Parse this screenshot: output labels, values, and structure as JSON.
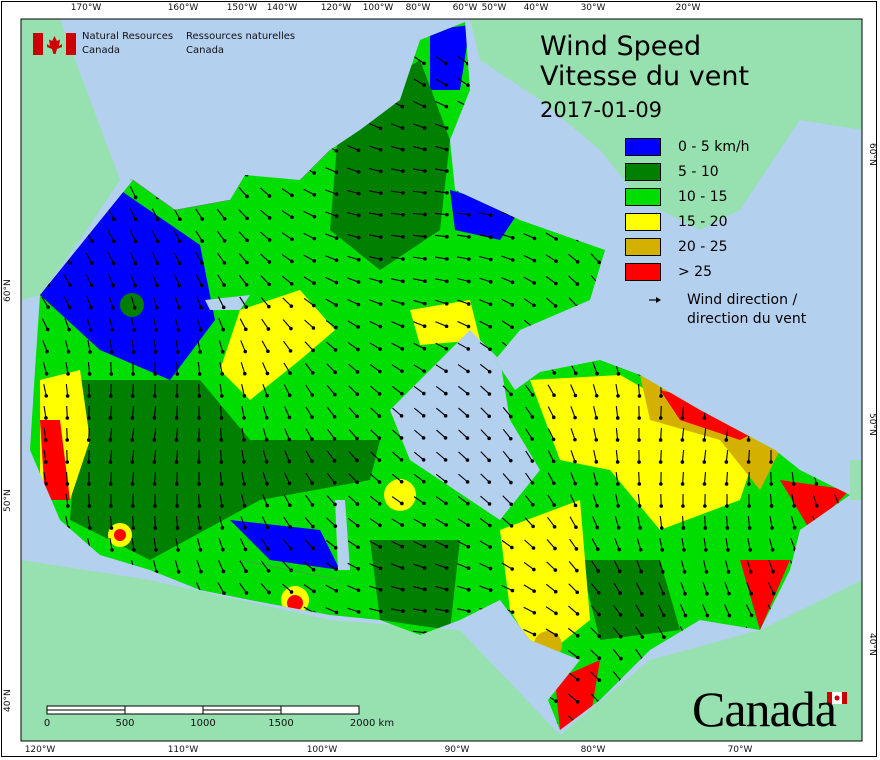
{
  "header": {
    "org_en": [
      "Natural Resources",
      "Canada"
    ],
    "org_fr": [
      "Ressources naturelles",
      "Canada"
    ]
  },
  "title": {
    "line1": "Wind Speed",
    "line2": "Vitesse du vent",
    "date": "2017-01-09"
  },
  "legend": {
    "items": [
      {
        "label": "0 - 5 km/h",
        "color": "#0000ff"
      },
      {
        "label": "5 - 10",
        "color": "#007f00"
      },
      {
        "label": "10 - 15",
        "color": "#00dd00"
      },
      {
        "label": "15 - 20",
        "color": "#ffff00"
      },
      {
        "label": "20 - 25",
        "color": "#d4b000"
      },
      {
        "label": "> 25",
        "color": "#ff0000"
      }
    ],
    "wind_direction": [
      "Wind direction /",
      "direction du vent"
    ]
  },
  "axes": {
    "top": [
      "170°W",
      "160°W",
      "150°W",
      "140°W",
      "120°W",
      "100°W",
      "80°W",
      "60°W",
      "50°W",
      "40°W",
      "30°W",
      "20°W"
    ],
    "bottom": [
      "120°W",
      "110°W",
      "100°W",
      "90°W",
      "80°W",
      "70°W"
    ],
    "left": [
      "60°N",
      "50°N",
      "40°N"
    ],
    "right": [
      "60°N",
      "50°N",
      "40°N"
    ]
  },
  "scale_bar": {
    "labels": [
      "0",
      "500",
      "1000",
      "1500",
      "2000 km"
    ]
  },
  "wordmark": "Canada",
  "colors": {
    "ocean": "#b4d0ef",
    "land": "#97e0b0"
  }
}
